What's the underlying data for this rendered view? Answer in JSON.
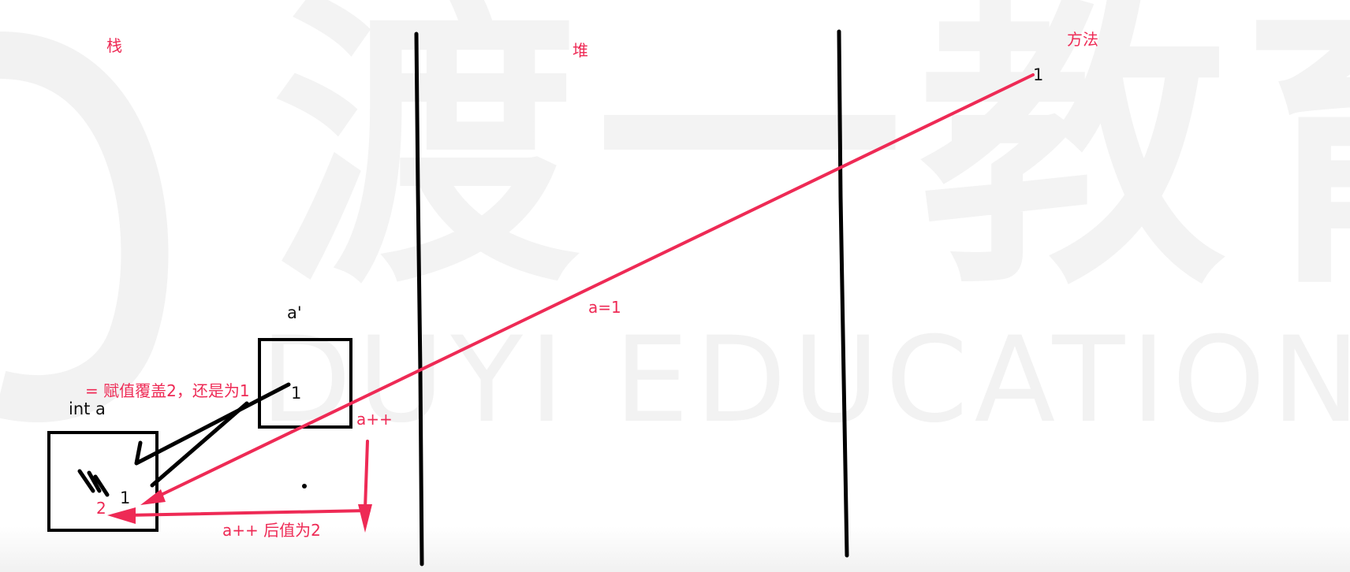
{
  "watermark": {
    "chinese": "渡一教育",
    "english": "DUYI EDUCATION"
  },
  "regions": {
    "stack": "栈",
    "heap": "堆",
    "method": "方法"
  },
  "labels": {
    "a_prime": "a'",
    "int_a": "int a",
    "box_small_value": "1",
    "box_big_value": "1",
    "method_value": "1",
    "assignment_note": "= 赋值覆盖2，还是为1",
    "a_eq_1": "a=1",
    "a_plus_plus": "a++",
    "a_plus_plus_result": "a++ 后值为2",
    "result_two": "2"
  },
  "colors": {
    "annotation": "#ee2a55",
    "ink": "#111111",
    "watermark": "#f2f2f2"
  }
}
